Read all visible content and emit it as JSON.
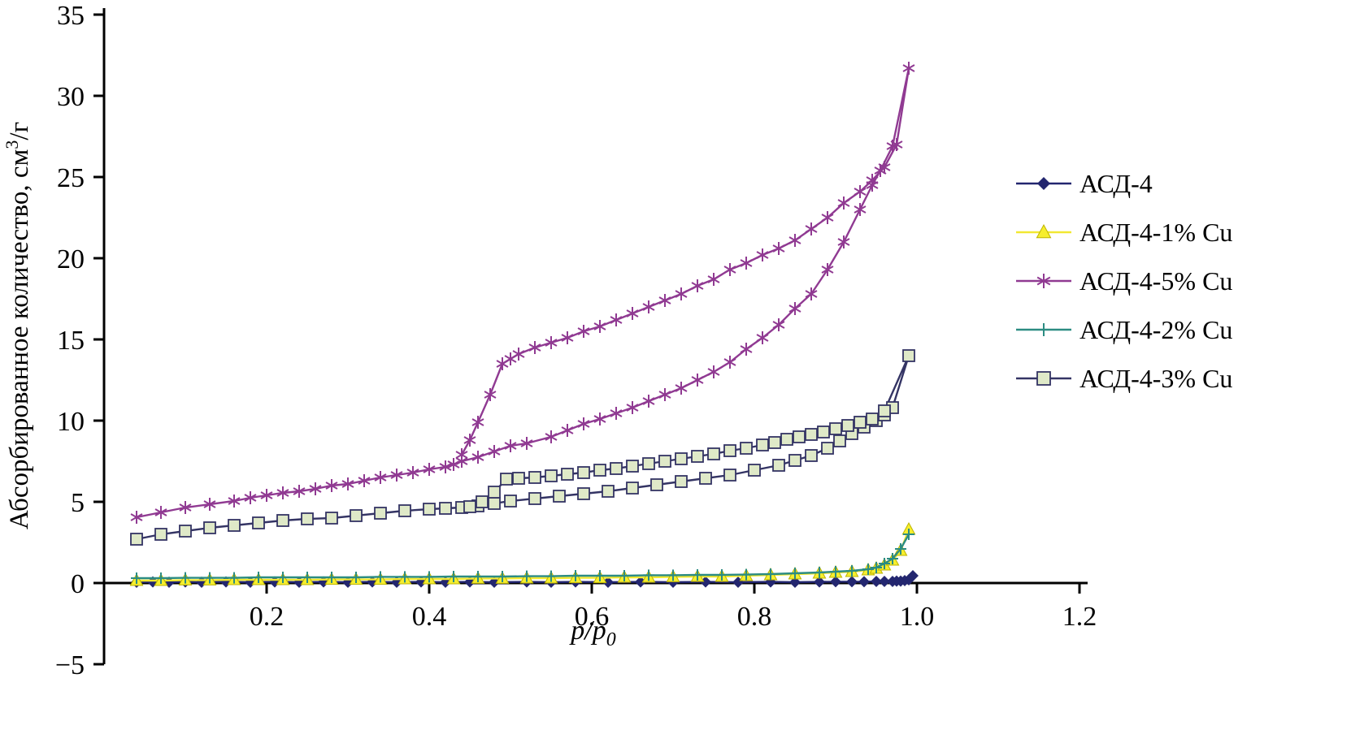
{
  "chart_data": {
    "type": "line",
    "title": "",
    "xlabel_italic": "p/p",
    "xlabel_sub": "0",
    "ylabel_pre": "Абсорбированное количество, см",
    "ylabel_sup": "3",
    "ylabel_post": "/г",
    "xlim": [
      0,
      1.2
    ],
    "ylim": [
      -5,
      35
    ],
    "x_ticks": [
      0.2,
      0.4,
      0.6,
      0.8,
      1.0,
      1.2
    ],
    "y_ticks": [
      -5,
      0,
      5,
      10,
      15,
      20,
      25,
      30,
      35
    ],
    "grid": false,
    "legend_position": "right",
    "series": [
      {
        "name": "АСД-4",
        "color": "#23266f",
        "marker": "diamond",
        "marker_fill": "#23266f",
        "marker_stroke": "#23266f",
        "marker_size": 7,
        "points": [
          [
            0.04,
            0.05
          ],
          [
            0.06,
            0.07
          ],
          [
            0.08,
            0.05
          ],
          [
            0.1,
            0.07
          ],
          [
            0.12,
            0.05
          ],
          [
            0.15,
            0.07
          ],
          [
            0.18,
            0.05
          ],
          [
            0.21,
            0.07
          ],
          [
            0.24,
            0.05
          ],
          [
            0.27,
            0.07
          ],
          [
            0.3,
            0.05
          ],
          [
            0.33,
            0.07
          ],
          [
            0.36,
            0.05
          ],
          [
            0.39,
            0.07
          ],
          [
            0.42,
            0.05
          ],
          [
            0.45,
            0.07
          ],
          [
            0.48,
            0.05
          ],
          [
            0.52,
            0.07
          ],
          [
            0.55,
            0.05
          ],
          [
            0.58,
            0.07
          ],
          [
            0.62,
            0.05
          ],
          [
            0.66,
            0.07
          ],
          [
            0.7,
            0.05
          ],
          [
            0.74,
            0.07
          ],
          [
            0.78,
            0.05
          ],
          [
            0.82,
            0.07
          ],
          [
            0.85,
            0.05
          ],
          [
            0.88,
            0.07
          ],
          [
            0.9,
            0.08
          ],
          [
            0.92,
            0.08
          ],
          [
            0.935,
            0.08
          ],
          [
            0.95,
            0.1
          ],
          [
            0.96,
            0.1
          ],
          [
            0.97,
            0.1
          ],
          [
            0.975,
            0.12
          ],
          [
            0.98,
            0.12
          ],
          [
            0.985,
            0.15
          ],
          [
            0.99,
            0.2
          ],
          [
            0.995,
            0.45
          ]
        ]
      },
      {
        "name": "АСД-4-1% Cu",
        "color": "#f2e832",
        "marker": "triangle",
        "marker_fill": "#f6ee2e",
        "marker_stroke": "#bdb400",
        "marker_size": 8,
        "points": [
          [
            0.04,
            0.15
          ],
          [
            0.07,
            0.15
          ],
          [
            0.1,
            0.18
          ],
          [
            0.13,
            0.18
          ],
          [
            0.16,
            0.2
          ],
          [
            0.19,
            0.2
          ],
          [
            0.22,
            0.2
          ],
          [
            0.25,
            0.2
          ],
          [
            0.28,
            0.22
          ],
          [
            0.31,
            0.22
          ],
          [
            0.34,
            0.22
          ],
          [
            0.37,
            0.25
          ],
          [
            0.4,
            0.25
          ],
          [
            0.43,
            0.25
          ],
          [
            0.46,
            0.28
          ],
          [
            0.49,
            0.28
          ],
          [
            0.52,
            0.3
          ],
          [
            0.55,
            0.3
          ],
          [
            0.58,
            0.32
          ],
          [
            0.61,
            0.32
          ],
          [
            0.64,
            0.35
          ],
          [
            0.67,
            0.35
          ],
          [
            0.7,
            0.38
          ],
          [
            0.73,
            0.4
          ],
          [
            0.76,
            0.4
          ],
          [
            0.79,
            0.45
          ],
          [
            0.82,
            0.5
          ],
          [
            0.85,
            0.55
          ],
          [
            0.88,
            0.6
          ],
          [
            0.9,
            0.65
          ],
          [
            0.92,
            0.7
          ],
          [
            0.94,
            0.8
          ],
          [
            0.95,
            0.9
          ],
          [
            0.96,
            1.1
          ],
          [
            0.97,
            1.4
          ],
          [
            0.98,
            2.0
          ],
          [
            0.99,
            3.3
          ]
        ]
      },
      {
        "name": "АСД-4-5% Cu",
        "color": "#903a92",
        "marker": "asterisk",
        "marker_fill": "#903a92",
        "marker_stroke": "#903a92",
        "marker_size": 8,
        "points": [
          [
            0.04,
            4.05
          ],
          [
            0.07,
            4.35
          ],
          [
            0.1,
            4.65
          ],
          [
            0.13,
            4.85
          ],
          [
            0.16,
            5.05
          ],
          [
            0.18,
            5.25
          ],
          [
            0.2,
            5.4
          ],
          [
            0.22,
            5.55
          ],
          [
            0.24,
            5.65
          ],
          [
            0.26,
            5.8
          ],
          [
            0.28,
            6.0
          ],
          [
            0.3,
            6.1
          ],
          [
            0.32,
            6.3
          ],
          [
            0.34,
            6.5
          ],
          [
            0.36,
            6.65
          ],
          [
            0.38,
            6.8
          ],
          [
            0.4,
            7.0
          ],
          [
            0.42,
            7.15
          ],
          [
            0.43,
            7.3
          ],
          [
            0.44,
            7.5
          ],
          [
            0.46,
            7.75
          ],
          [
            0.48,
            8.1
          ],
          [
            0.5,
            8.45
          ],
          [
            0.52,
            8.6
          ],
          [
            0.55,
            9.0
          ],
          [
            0.57,
            9.4
          ],
          [
            0.59,
            9.8
          ],
          [
            0.61,
            10.1
          ],
          [
            0.63,
            10.45
          ],
          [
            0.65,
            10.8
          ],
          [
            0.67,
            11.2
          ],
          [
            0.69,
            11.6
          ],
          [
            0.71,
            12.0
          ],
          [
            0.73,
            12.5
          ],
          [
            0.75,
            13.0
          ],
          [
            0.77,
            13.6
          ],
          [
            0.79,
            14.4
          ],
          [
            0.81,
            15.1
          ],
          [
            0.83,
            15.9
          ],
          [
            0.85,
            16.9
          ],
          [
            0.87,
            17.8
          ],
          [
            0.89,
            19.3
          ],
          [
            0.91,
            21.0
          ],
          [
            0.93,
            23.0
          ],
          [
            0.945,
            24.5
          ],
          [
            0.955,
            25.4
          ],
          [
            0.97,
            26.9
          ],
          [
            0.99,
            31.7
          ],
          [
            0.975,
            27.0
          ],
          [
            0.96,
            25.6
          ],
          [
            0.945,
            24.8
          ],
          [
            0.93,
            24.1
          ],
          [
            0.91,
            23.4
          ],
          [
            0.89,
            22.5
          ],
          [
            0.87,
            21.8
          ],
          [
            0.85,
            21.1
          ],
          [
            0.83,
            20.6
          ],
          [
            0.81,
            20.2
          ],
          [
            0.79,
            19.7
          ],
          [
            0.77,
            19.3
          ],
          [
            0.75,
            18.7
          ],
          [
            0.73,
            18.3
          ],
          [
            0.71,
            17.8
          ],
          [
            0.69,
            17.4
          ],
          [
            0.67,
            17.0
          ],
          [
            0.65,
            16.6
          ],
          [
            0.63,
            16.2
          ],
          [
            0.61,
            15.8
          ],
          [
            0.59,
            15.5
          ],
          [
            0.57,
            15.1
          ],
          [
            0.55,
            14.8
          ],
          [
            0.53,
            14.5
          ],
          [
            0.51,
            14.1
          ],
          [
            0.5,
            13.8
          ],
          [
            0.49,
            13.5
          ],
          [
            0.475,
            11.6
          ],
          [
            0.46,
            9.9
          ],
          [
            0.45,
            8.8
          ],
          [
            0.44,
            7.9
          ]
        ]
      },
      {
        "name": "АСД-4-2% Cu",
        "color": "#2c8c82",
        "marker": "plus",
        "marker_fill": "#2c8c82",
        "marker_stroke": "#2c8c82",
        "marker_size": 7,
        "points": [
          [
            0.04,
            0.3
          ],
          [
            0.07,
            0.3
          ],
          [
            0.1,
            0.32
          ],
          [
            0.13,
            0.32
          ],
          [
            0.16,
            0.32
          ],
          [
            0.19,
            0.35
          ],
          [
            0.22,
            0.35
          ],
          [
            0.25,
            0.35
          ],
          [
            0.28,
            0.35
          ],
          [
            0.31,
            0.35
          ],
          [
            0.34,
            0.38
          ],
          [
            0.37,
            0.38
          ],
          [
            0.4,
            0.38
          ],
          [
            0.43,
            0.4
          ],
          [
            0.46,
            0.4
          ],
          [
            0.49,
            0.4
          ],
          [
            0.52,
            0.42
          ],
          [
            0.55,
            0.42
          ],
          [
            0.58,
            0.45
          ],
          [
            0.61,
            0.45
          ],
          [
            0.64,
            0.45
          ],
          [
            0.67,
            0.48
          ],
          [
            0.7,
            0.48
          ],
          [
            0.73,
            0.5
          ],
          [
            0.76,
            0.5
          ],
          [
            0.79,
            0.52
          ],
          [
            0.82,
            0.55
          ],
          [
            0.85,
            0.6
          ],
          [
            0.88,
            0.65
          ],
          [
            0.9,
            0.7
          ],
          [
            0.92,
            0.75
          ],
          [
            0.94,
            0.85
          ],
          [
            0.95,
            0.95
          ],
          [
            0.96,
            1.2
          ],
          [
            0.97,
            1.5
          ],
          [
            0.98,
            2.1
          ],
          [
            0.99,
            3.0
          ]
        ]
      },
      {
        "name": "АСД-4-3% Cu",
        "color": "#343464",
        "marker": "square",
        "marker_fill": "#dfe9c8",
        "marker_stroke": "#343464",
        "marker_size": 7,
        "points": [
          [
            0.04,
            2.7
          ],
          [
            0.07,
            3.0
          ],
          [
            0.1,
            3.2
          ],
          [
            0.13,
            3.4
          ],
          [
            0.16,
            3.55
          ],
          [
            0.19,
            3.7
          ],
          [
            0.22,
            3.85
          ],
          [
            0.25,
            3.95
          ],
          [
            0.28,
            4.0
          ],
          [
            0.31,
            4.15
          ],
          [
            0.34,
            4.3
          ],
          [
            0.37,
            4.45
          ],
          [
            0.4,
            4.55
          ],
          [
            0.42,
            4.6
          ],
          [
            0.44,
            4.65
          ],
          [
            0.46,
            4.75
          ],
          [
            0.48,
            4.9
          ],
          [
            0.5,
            5.05
          ],
          [
            0.53,
            5.2
          ],
          [
            0.56,
            5.35
          ],
          [
            0.59,
            5.5
          ],
          [
            0.62,
            5.65
          ],
          [
            0.65,
            5.85
          ],
          [
            0.68,
            6.05
          ],
          [
            0.71,
            6.25
          ],
          [
            0.74,
            6.45
          ],
          [
            0.77,
            6.65
          ],
          [
            0.8,
            6.95
          ],
          [
            0.83,
            7.25
          ],
          [
            0.85,
            7.55
          ],
          [
            0.87,
            7.85
          ],
          [
            0.89,
            8.3
          ],
          [
            0.905,
            8.75
          ],
          [
            0.92,
            9.2
          ],
          [
            0.935,
            9.6
          ],
          [
            0.95,
            10.0
          ],
          [
            0.96,
            10.35
          ],
          [
            0.97,
            10.8
          ],
          [
            0.99,
            14.0
          ],
          [
            0.96,
            10.6
          ],
          [
            0.945,
            10.1
          ],
          [
            0.93,
            9.9
          ],
          [
            0.915,
            9.7
          ],
          [
            0.9,
            9.5
          ],
          [
            0.885,
            9.3
          ],
          [
            0.87,
            9.15
          ],
          [
            0.855,
            9.0
          ],
          [
            0.84,
            8.85
          ],
          [
            0.825,
            8.65
          ],
          [
            0.81,
            8.5
          ],
          [
            0.79,
            8.3
          ],
          [
            0.77,
            8.15
          ],
          [
            0.75,
            7.95
          ],
          [
            0.73,
            7.8
          ],
          [
            0.71,
            7.65
          ],
          [
            0.69,
            7.5
          ],
          [
            0.67,
            7.35
          ],
          [
            0.65,
            7.2
          ],
          [
            0.63,
            7.05
          ],
          [
            0.61,
            6.95
          ],
          [
            0.59,
            6.8
          ],
          [
            0.57,
            6.7
          ],
          [
            0.55,
            6.6
          ],
          [
            0.53,
            6.5
          ],
          [
            0.51,
            6.45
          ],
          [
            0.495,
            6.4
          ],
          [
            0.48,
            5.6
          ],
          [
            0.465,
            5.0
          ],
          [
            0.45,
            4.7
          ]
        ]
      }
    ]
  }
}
